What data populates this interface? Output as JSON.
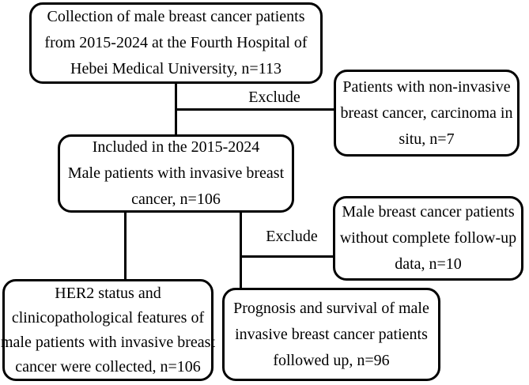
{
  "colors": {
    "background": "#ffffff",
    "border": "#000000",
    "text": "#000000"
  },
  "nodes": {
    "collection": {
      "lines": [
        "Collection of male breast cancer patients",
        "from 2015-2024 at the Fourth Hospital of",
        "Hebei Medical University, n=113"
      ]
    },
    "excluded_noninvasive": {
      "lines": [
        "Patients with non-invasive",
        "breast cancer, carcinoma in",
        "situ, n=7"
      ]
    },
    "included_invasive": {
      "lines": [
        "Included in the 2015-2024",
        "Male patients with invasive breast",
        "cancer, n=106"
      ]
    },
    "excluded_followup": {
      "lines": [
        "Male breast cancer patients",
        "without complete follow-up",
        "data, n=10"
      ]
    },
    "her2_features": {
      "lines": [
        "HER2 status and",
        "clinicopathological features of",
        "male patients with invasive breast",
        "cancer were collected, n=106"
      ]
    },
    "prognosis_survival": {
      "lines": [
        "Prognosis and survival of male",
        "invasive breast cancer patients",
        "followed up, n=96"
      ]
    }
  },
  "edge_labels": {
    "exclude_1": "Exclude",
    "exclude_2": "Exclude"
  }
}
